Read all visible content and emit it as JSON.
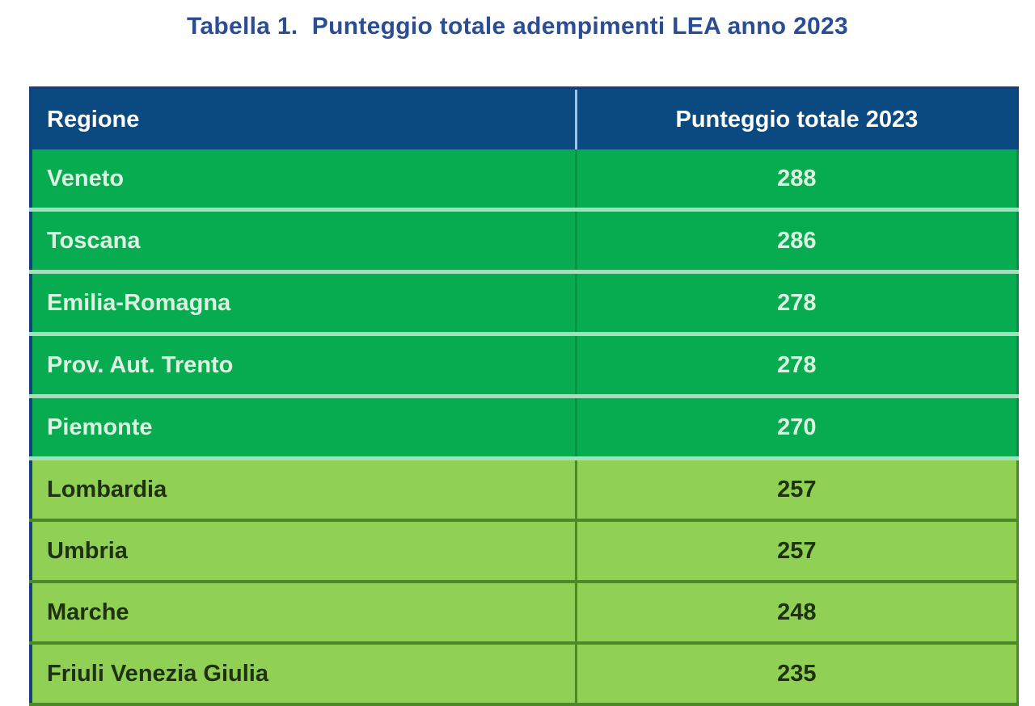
{
  "title": "Tabella 1.  Punteggio totale adempimenti LEA anno 2023",
  "table": {
    "columns": [
      "Regione",
      "Punteggio totale 2023"
    ],
    "rows": [
      {
        "region": "Veneto",
        "score": "288",
        "tier": "high"
      },
      {
        "region": "Toscana",
        "score": "286",
        "tier": "high"
      },
      {
        "region": "Emilia-Romagna",
        "score": "278",
        "tier": "high"
      },
      {
        "region": "Prov. Aut. Trento",
        "score": "278",
        "tier": "high"
      },
      {
        "region": "Piemonte",
        "score": "270",
        "tier": "high"
      },
      {
        "region": "Lombardia",
        "score": "257",
        "tier": "mid"
      },
      {
        "region": "Umbria",
        "score": "257",
        "tier": "mid"
      },
      {
        "region": "Marche",
        "score": "248",
        "tier": "mid"
      },
      {
        "region": "Friuli Venezia Giulia",
        "score": "235",
        "tier": "mid"
      }
    ]
  },
  "colors": {
    "title_text": "#2b4d93",
    "header_background": "#0b4a80",
    "header_text": "#ffffff",
    "header_column_divider": "#9dc3e6",
    "outer_border": "#14417b",
    "tier_high_background": "#07ab50",
    "tier_high_text": "#dcf3e1",
    "tier_high_row_divider": "#a3dfbd",
    "tier_mid_background": "#8fd055",
    "tier_mid_text": "#20310f",
    "tier_mid_row_divider": "#4b8a28"
  },
  "chart_data": {
    "type": "table",
    "title": "Tabella 1. Punteggio totale adempimenti LEA anno 2023",
    "columns": [
      "Regione",
      "Punteggio totale 2023"
    ],
    "rows": [
      [
        "Veneto",
        288
      ],
      [
        "Toscana",
        286
      ],
      [
        "Emilia-Romagna",
        278
      ],
      [
        "Prov. Aut. Trento",
        278
      ],
      [
        "Piemonte",
        270
      ],
      [
        "Lombardia",
        257
      ],
      [
        "Umbria",
        257
      ],
      [
        "Marche",
        248
      ],
      [
        "Friuli Venezia Giulia",
        235
      ]
    ],
    "row_groups": [
      {
        "name": "dark-green-tier",
        "row_indices": [
          0,
          1,
          2,
          3,
          4
        ]
      },
      {
        "name": "light-green-tier",
        "row_indices": [
          5,
          6,
          7,
          8
        ]
      }
    ],
    "notes": "Last row (Friuli Venezia Giulia) is clipped at the bottom edge of the screenshot."
  }
}
